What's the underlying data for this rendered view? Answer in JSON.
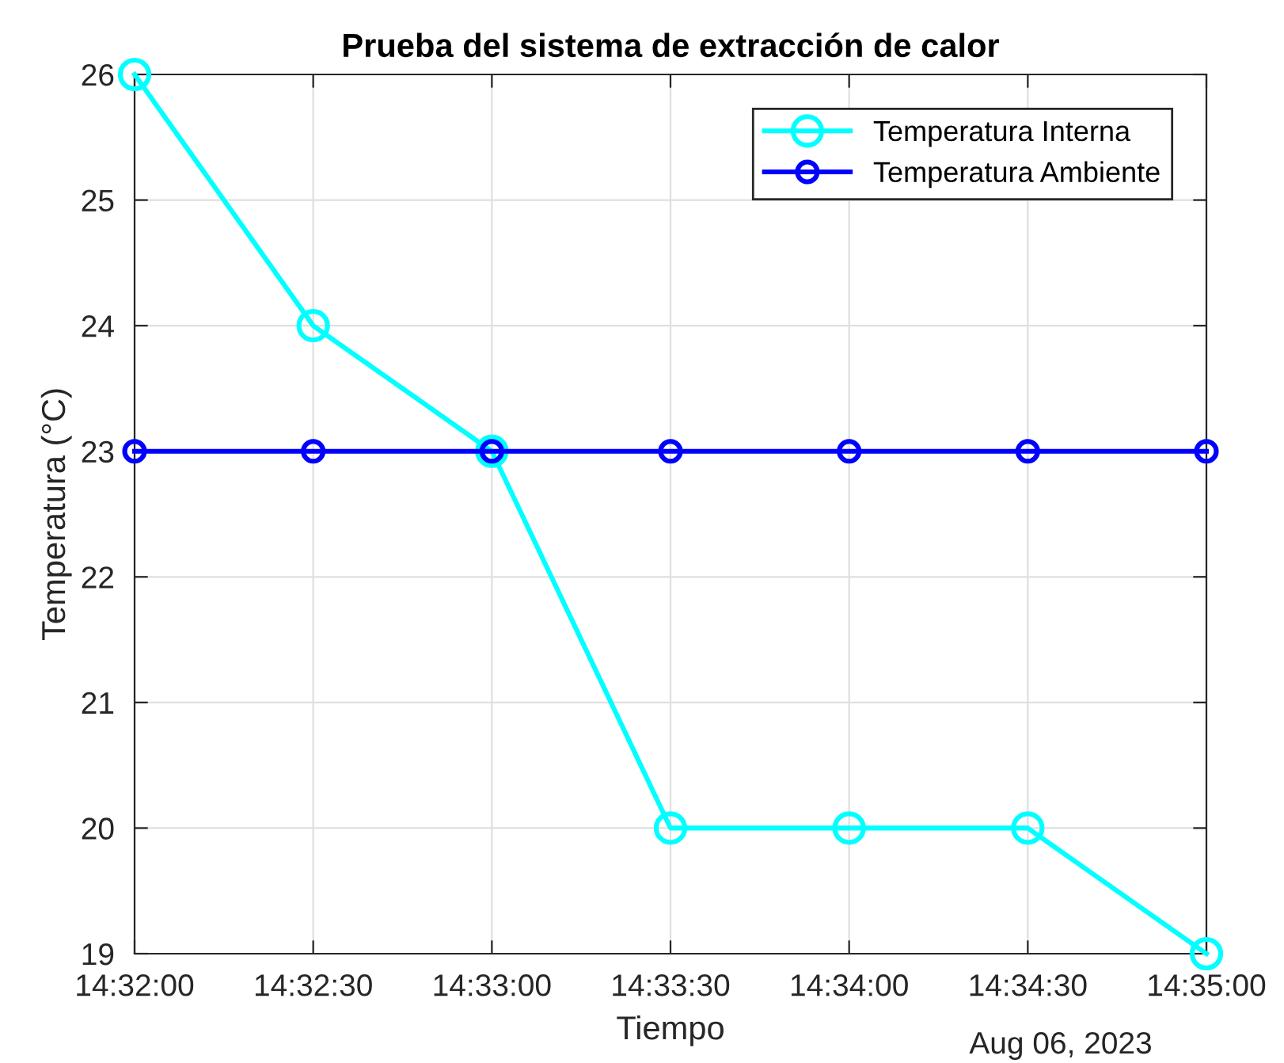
{
  "chart_data": {
    "type": "line",
    "title": "Prueba del sistema de extracción de calor",
    "xlabel": "Tiempo",
    "ylabel": "Temperatura (°C)",
    "x": [
      "2023-08-06T14:32:00",
      "2023-08-06T14:32:30",
      "2023-08-06T14:33:00",
      "2023-08-06T14:33:30",
      "2023-08-06T14:34:00",
      "2023-08-06T14:34:30",
      "2023-08-06T14:35:00"
    ],
    "series": [
      {
        "name": "Temperatura Interna",
        "color": "#00ffff",
        "values": [
          26,
          24,
          23,
          20,
          20,
          20,
          19
        ]
      },
      {
        "name": "Temperatura Ambiente",
        "color": "#0000ff",
        "values": [
          23,
          23,
          23,
          23,
          23,
          23,
          23
        ]
      }
    ],
    "xlim": [
      "2023-08-06T14:32:00",
      "2023-08-06T14:35:00"
    ],
    "xticks": [
      {
        "value": "2023-08-06T14:32:00",
        "label": "14:32:00"
      },
      {
        "value": "2023-08-06T14:32:30",
        "label": "14:32:30"
      },
      {
        "value": "2023-08-06T14:33:00",
        "label": "14:33:00"
      },
      {
        "value": "2023-08-06T14:33:30",
        "label": "14:33:30"
      },
      {
        "value": "2023-08-06T14:34:00",
        "label": "14:34:00"
      },
      {
        "value": "2023-08-06T14:34:30",
        "label": "14:34:30"
      },
      {
        "value": "2023-08-06T14:35:00",
        "label": "14:35:00"
      }
    ],
    "ylim": [
      19,
      26
    ],
    "yticks": [
      19,
      20,
      21,
      22,
      23,
      24,
      25,
      26
    ],
    "annotations": [
      "Aug 06, 2023"
    ],
    "grid": true,
    "legend": "top right",
    "marker": "circle",
    "line_style": "solid"
  }
}
